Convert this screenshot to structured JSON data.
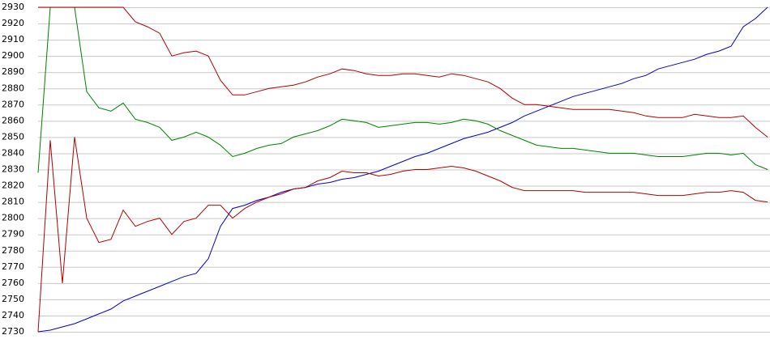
{
  "chart_data": {
    "type": "line",
    "categories": [
      null,
      null,
      null,
      null,
      null,
      null,
      null,
      null,
      null,
      null,
      null,
      null,
      null,
      null,
      null,
      null,
      null,
      null,
      null,
      null,
      null,
      null,
      null,
      null,
      null,
      null,
      null,
      null,
      null,
      null,
      null,
      null,
      null,
      null,
      null,
      null,
      null,
      null,
      null,
      null,
      null,
      null,
      null,
      null,
      null,
      null,
      null,
      null,
      null,
      null,
      null,
      null,
      null,
      null,
      null,
      null,
      null,
      null,
      null,
      null,
      null
    ],
    "series": [
      {
        "color": "#0000cc",
        "values": [
          2730,
          2731,
          2733,
          2735,
          2738,
          2741,
          2744,
          2749,
          2752,
          2755,
          2758,
          2761,
          2764,
          2766,
          2775,
          2795,
          2806,
          2808,
          2811,
          2813,
          2816,
          2818,
          2819,
          2821,
          2822,
          2824,
          2825,
          2827,
          2829,
          2832,
          2835,
          2838,
          2840,
          2843,
          2846,
          2849,
          2851,
          2853,
          2856,
          2859,
          2863,
          2866,
          2869,
          2872,
          2875,
          2877,
          2879,
          2881,
          2883,
          2886,
          2888,
          2892,
          2894,
          2896,
          2898,
          2901,
          2903,
          2906,
          2918,
          2923,
          2930
        ]
      },
      {
        "color": "#008000",
        "values": [
          2828,
          2930,
          2930,
          2930,
          2878,
          2868,
          2866,
          2871,
          2861,
          2859,
          2856,
          2848,
          2850,
          2853,
          2850,
          2845,
          2838,
          2840,
          2843,
          2845,
          2846,
          2850,
          2852,
          2854,
          2857,
          2861,
          2860,
          2859,
          2856,
          2857,
          2858,
          2859,
          2859,
          2858,
          2859,
          2861,
          2860,
          2858,
          2854,
          2851,
          2848,
          2845,
          2844,
          2843,
          2843,
          2842,
          2841,
          2840,
          2840,
          2840,
          2839,
          2838,
          2838,
          2838,
          2839,
          2840,
          2840,
          2839,
          2840,
          2833,
          2830
        ]
      },
      {
        "color": "#b00000",
        "values": [
          2930,
          2930,
          2930,
          2930,
          2930,
          2930,
          2930,
          2930,
          2921,
          2918,
          2914,
          2900,
          2902,
          2903,
          2900,
          2885,
          2876,
          2876,
          2878,
          2880,
          2881,
          2882,
          2884,
          2887,
          2889,
          2892,
          2891,
          2889,
          2888,
          2888,
          2889,
          2889,
          2888,
          2887,
          2889,
          2888,
          2886,
          2884,
          2880,
          2874,
          2870,
          2870,
          2869,
          2868,
          2867,
          2867,
          2867,
          2867,
          2866,
          2865,
          2863,
          2862,
          2862,
          2862,
          2864,
          2863,
          2862,
          2862,
          2863,
          2856,
          2850
        ]
      },
      {
        "color": "#b00000",
        "values": [
          2730,
          2848,
          2760,
          2850,
          2800,
          2785,
          2787,
          2805,
          2795,
          2798,
          2800,
          2790,
          2798,
          2800,
          2808,
          2808,
          2800,
          2806,
          2810,
          2813,
          2815,
          2818,
          2819,
          2823,
          2825,
          2829,
          2828,
          2828,
          2826,
          2827,
          2829,
          2830,
          2830,
          2831,
          2832,
          2831,
          2829,
          2826,
          2823,
          2819,
          2817,
          2817,
          2817,
          2817,
          2817,
          2816,
          2816,
          2816,
          2816,
          2816,
          2815,
          2814,
          2814,
          2814,
          2815,
          2816,
          2816,
          2817,
          2816,
          2811,
          2810
        ]
      }
    ],
    "ylim": [
      2730,
      2930
    ],
    "yticks": [
      2730,
      2740,
      2750,
      2760,
      2770,
      2780,
      2790,
      2800,
      2810,
      2820,
      2830,
      2840,
      2850,
      2860,
      2870,
      2880,
      2890,
      2900,
      2910,
      2920,
      2930
    ],
    "grid": true
  }
}
